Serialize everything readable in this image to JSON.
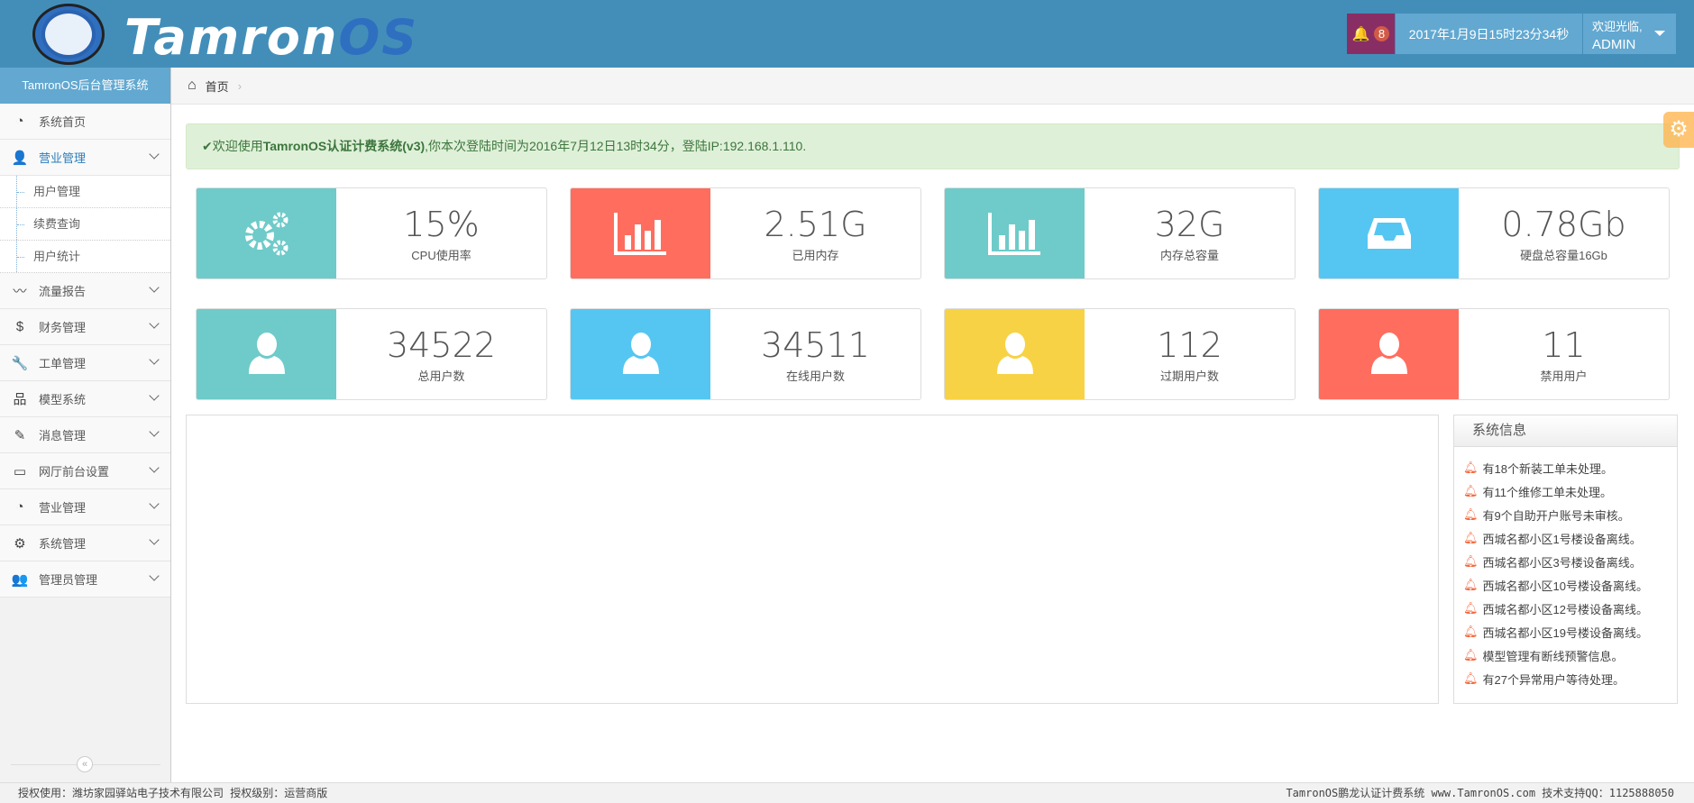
{
  "header": {
    "brand_main": "Tamron",
    "brand_accent": "OS",
    "notif_count": "8",
    "datetime": "2017年1月9日15时23分34秒",
    "welcome": "欢迎光临,",
    "username": "ADMIN",
    "colors": {
      "bar": "#438eb9",
      "bell": "#892e65",
      "box": "#62a8d1"
    }
  },
  "sidebar": {
    "title": "TamronOS后台管理系统",
    "items": [
      {
        "label": "系统首页",
        "icon": "dashboard-icon",
        "glyph": "◔"
      },
      {
        "label": "营业管理",
        "icon": "user-icon",
        "glyph": "👤",
        "active": true,
        "children": [
          "用户管理",
          "续费查询",
          "用户统计"
        ]
      },
      {
        "label": "流量报告",
        "icon": "rss-icon",
        "glyph": "〰"
      },
      {
        "label": "财务管理",
        "icon": "dollar-icon",
        "glyph": "$"
      },
      {
        "label": "工单管理",
        "icon": "wrench-icon",
        "glyph": "🔧"
      },
      {
        "label": "模型系统",
        "icon": "sitemap-icon",
        "glyph": "品"
      },
      {
        "label": "消息管理",
        "icon": "edit-icon",
        "glyph": "✎"
      },
      {
        "label": "网厅前台设置",
        "icon": "desktop-icon",
        "glyph": "▭"
      },
      {
        "label": "营业管理",
        "icon": "dashboard-icon",
        "glyph": "◔"
      },
      {
        "label": "系统管理",
        "icon": "gears-icon",
        "glyph": "⚙"
      },
      {
        "label": "管理员管理",
        "icon": "users-icon",
        "glyph": "👥"
      }
    ],
    "collapse": "«"
  },
  "breadcrumb": {
    "home": "首页"
  },
  "alert": {
    "check": "✔",
    "pre": "欢迎使用",
    "bold": "TamronOS认证计费系统(v3)",
    "post": ",你本次登陆时间为2016年7月12日13时34分，登陆IP:192.168.1.110."
  },
  "cards": [
    {
      "value": "15%",
      "label": "CPU使用率",
      "color": "#6ecbc9",
      "icon": "gears-icon"
    },
    {
      "value": "2.51G",
      "label": "已用内存",
      "color": "#ff6d5e",
      "icon": "bar-chart-icon"
    },
    {
      "value": "32G",
      "label": "内存总容量",
      "color": "#6ecbc9",
      "icon": "bar-chart-icon"
    },
    {
      "value": "0.78Gb",
      "label": "硬盘总容量16Gb",
      "color": "#55c6f2",
      "icon": "inbox-icon"
    },
    {
      "value": "34522",
      "label": "总用户数",
      "color": "#6ecbc9",
      "icon": "user-icon"
    },
    {
      "value": "34511",
      "label": "在线用户数",
      "color": "#55c6f2",
      "icon": "user-icon"
    },
    {
      "value": "112",
      "label": "过期用户数",
      "color": "#f7d244",
      "icon": "user-icon"
    },
    {
      "value": "11",
      "label": "禁用用户",
      "color": "#ff6d5e",
      "icon": "user-icon"
    }
  ],
  "sysinfo": {
    "title": "系统信息",
    "items": [
      "有18个新装工单未处理。",
      "有11个维修工单未处理。",
      "有9个自助开户账号未审核。",
      "西城名都小区1号楼设备离线。",
      "西城名都小区3号楼设备离线。",
      "西城名都小区10号楼设备离线。",
      "西城名都小区12号楼设备离线。",
      "西城名都小区19号楼设备离线。",
      "模型管理有断线预警信息。",
      "有27个异常用户等待处理。"
    ]
  },
  "footer": {
    "left": "授权使用：潍坊家园驿站电子技术有限公司 授权级别：运营商版",
    "right": "TamronOS鹏龙认证计费系统 www.TamronOS.com 技术支持QQ：1125888050"
  }
}
